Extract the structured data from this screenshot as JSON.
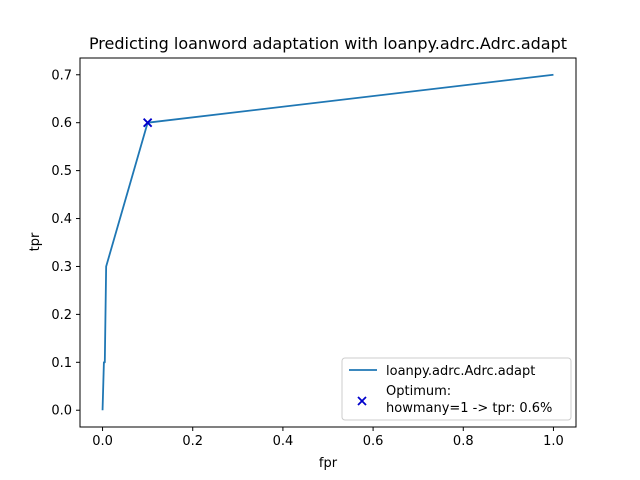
{
  "chart_data": {
    "type": "line",
    "title": "Predicting loanword adaptation with loanpy.adrc.Adrc.adapt",
    "xlabel": "fpr",
    "ylabel": "tpr",
    "xlim": [
      -0.05,
      1.05
    ],
    "ylim": [
      -0.035,
      0.735
    ],
    "xticks": [
      0.0,
      0.2,
      0.4,
      0.6,
      0.8,
      1.0
    ],
    "xtick_labels": [
      "0.0",
      "0.2",
      "0.4",
      "0.6",
      "0.8",
      "1.0"
    ],
    "yticks": [
      0.0,
      0.1,
      0.2,
      0.3,
      0.4,
      0.5,
      0.6,
      0.7
    ],
    "ytick_labels": [
      "0.0",
      "0.1",
      "0.2",
      "0.3",
      "0.4",
      "0.5",
      "0.6",
      "0.7"
    ],
    "grid": false,
    "legend_position": "lower-right",
    "series": [
      {
        "name": "loanpy.adrc.Adrc.adapt",
        "color": "#1f77b4",
        "x": [
          0.0,
          0.003,
          0.005,
          0.008,
          0.008,
          0.1,
          1.0
        ],
        "y": [
          0.0,
          0.1,
          0.1,
          0.3,
          0.3,
          0.6,
          0.7
        ]
      }
    ],
    "markers": [
      {
        "name": "Optimum:\nhowmany=1 -> tpr: 0.6%",
        "label_lines": [
          "Optimum:",
          "howmany=1 -> tpr: 0.6%"
        ],
        "marker": "x",
        "color": "#0000cc",
        "x": 0.1,
        "y": 0.6
      }
    ]
  }
}
